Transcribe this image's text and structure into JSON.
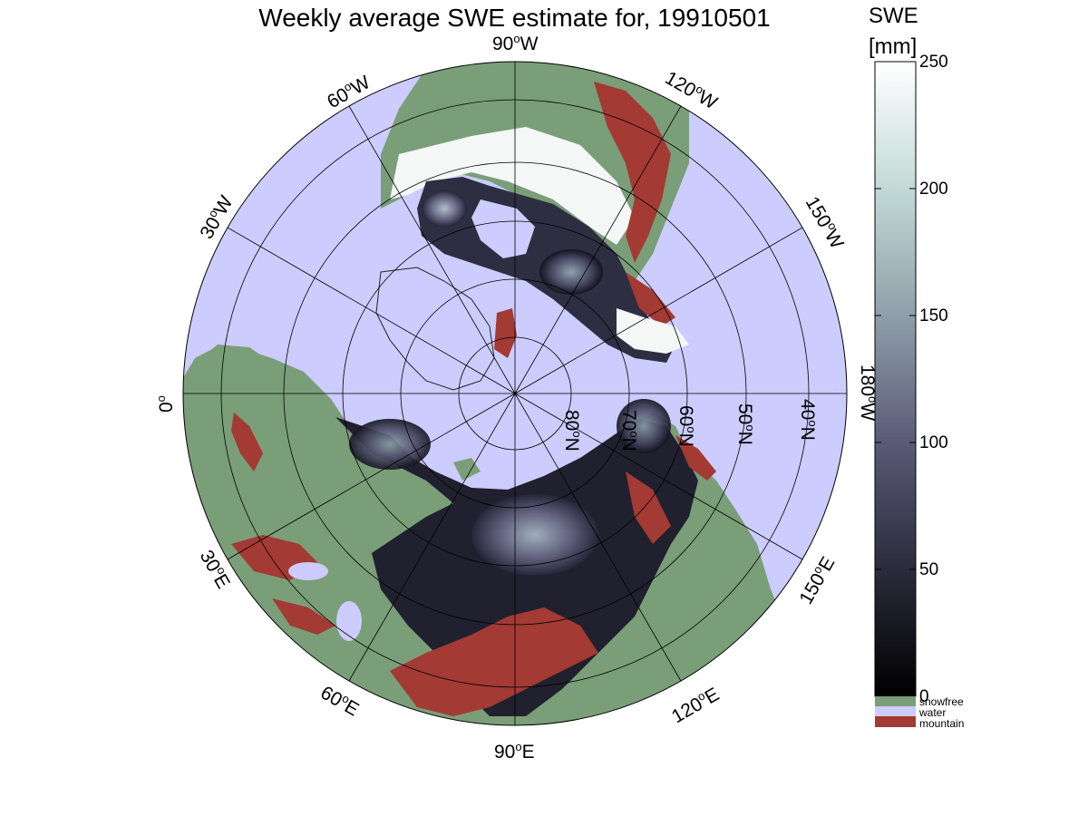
{
  "title": "Weekly average SWE estimate for, 19910501",
  "colorbar": {
    "title": "SWE",
    "units": "[mm]",
    "min": 0,
    "max": 250,
    "ticks": [
      {
        "value": 0,
        "label": "0"
      },
      {
        "value": 50,
        "label": "50"
      },
      {
        "value": 100,
        "label": "100"
      },
      {
        "value": 150,
        "label": "150"
      },
      {
        "value": 200,
        "label": "200"
      },
      {
        "value": 250,
        "label": "250"
      }
    ],
    "gradient_stops": [
      "#000000",
      "#2b2b3b",
      "#5a5a78",
      "#8f9fa9",
      "#c2dad6",
      "#ffffff"
    ],
    "categories": [
      {
        "label": "snowfree",
        "color": "#7a9e78"
      },
      {
        "label": "water",
        "color": "#ccccff"
      },
      {
        "label": "mountain",
        "color": "#a33a33"
      }
    ]
  },
  "map": {
    "projection": "north polar stereographic",
    "ocean_color": "#ccccff",
    "longitude_labels": [
      {
        "lon": 90,
        "hemi": "W",
        "label": "90",
        "suffix": "W"
      },
      {
        "lon": 120,
        "hemi": "W",
        "label": "120",
        "suffix": "W"
      },
      {
        "lon": 150,
        "hemi": "W",
        "label": "150",
        "suffix": "W"
      },
      {
        "lon": 180,
        "hemi": "W",
        "label": "180",
        "suffix": "W"
      },
      {
        "lon": 150,
        "hemi": "E",
        "label": "150",
        "suffix": "E"
      },
      {
        "lon": 120,
        "hemi": "E",
        "label": "120",
        "suffix": "E"
      },
      {
        "lon": 90,
        "hemi": "E",
        "label": "90",
        "suffix": "E"
      },
      {
        "lon": 60,
        "hemi": "E",
        "label": "60",
        "suffix": "E"
      },
      {
        "lon": 30,
        "hemi": "E",
        "label": "30",
        "suffix": "E"
      },
      {
        "lon": 0,
        "hemi": "",
        "label": "0",
        "suffix": ""
      },
      {
        "lon": 30,
        "hemi": "W",
        "label": "30",
        "suffix": "W"
      },
      {
        "lon": 60,
        "hemi": "W",
        "label": "60",
        "suffix": "W"
      }
    ],
    "latitude_labels": [
      {
        "lat": 80,
        "label": "80",
        "suffix": "N"
      },
      {
        "lat": 70,
        "label": "70",
        "suffix": "N"
      },
      {
        "lat": 60,
        "label": "60",
        "suffix": "N"
      },
      {
        "lat": 50,
        "label": "50",
        "suffix": "N"
      },
      {
        "lat": 40,
        "label": "40",
        "suffix": "N"
      }
    ]
  }
}
